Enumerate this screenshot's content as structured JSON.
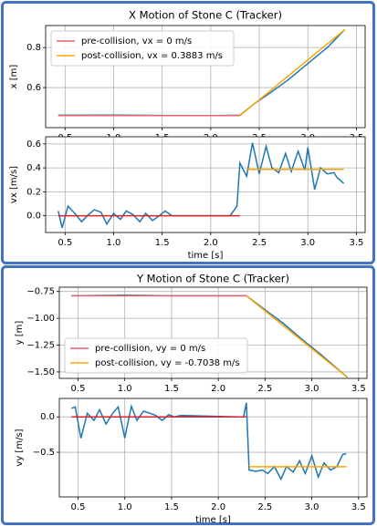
{
  "chart_data": [
    {
      "type": "line",
      "title": "X Motion of Stone C (Tracker)",
      "y_label": "x [m]",
      "xlim": [
        0.3,
        3.59
      ],
      "xticks": [
        0.5,
        {
          "value": 1,
          "label": "1.0"
        },
        1.5,
        {
          "value": 2,
          "label": "2.0"
        },
        2.5,
        {
          "value": 3,
          "label": "3.0"
        },
        3.5
      ],
      "ylim": [
        0.4,
        0.91
      ],
      "yticks": [
        0.6,
        0.8
      ],
      "grid": true,
      "legend": "upper left",
      "series": [
        {
          "color": "#1f77b4",
          "x": [
            0.43,
            1.0,
            1.5,
            2.0,
            2.3,
            2.45,
            2.6,
            2.8,
            3.0,
            3.2,
            3.38
          ],
          "values": [
            0.462,
            0.463,
            0.461,
            0.46,
            0.462,
            0.52,
            0.57,
            0.64,
            0.72,
            0.8,
            0.89
          ]
        },
        {
          "name": "pre-collision, vx = 0 m/s",
          "color": "#e8646a",
          "x": [
            0.43,
            2.3
          ],
          "values": [
            0.46,
            0.46
          ]
        },
        {
          "name": "post-collision, vx = 0.3883 m/s",
          "color": "#ffa500",
          "x": [
            2.3,
            3.38
          ],
          "values": [
            0.46,
            0.89
          ]
        }
      ]
    },
    {
      "type": "line",
      "x_label": "time [s]",
      "y_label": "vx [m/s]",
      "xlim": [
        0.3,
        3.59
      ],
      "xticks": [
        0.5,
        {
          "value": 1,
          "label": "1.0"
        },
        1.5,
        {
          "value": 2,
          "label": "2.0"
        },
        2.5,
        {
          "value": 3,
          "label": "3.0"
        },
        3.5
      ],
      "ylim": [
        -0.14,
        0.66
      ],
      "yticks": [
        {
          "value": 0,
          "label": "0.0"
        },
        0.2,
        0.4,
        0.6
      ],
      "grid": true,
      "series": [
        {
          "color": "#1f77b4",
          "x": [
            0.43,
            0.47,
            0.53,
            0.6,
            0.67,
            0.73,
            0.8,
            0.87,
            0.93,
            1.0,
            1.07,
            1.13,
            1.2,
            1.27,
            1.33,
            1.4,
            1.47,
            1.53,
            1.6,
            2.2,
            2.27,
            2.3,
            2.37,
            2.43,
            2.5,
            2.57,
            2.63,
            2.7,
            2.77,
            2.83,
            2.9,
            2.97,
            3.0,
            3.07,
            3.13,
            3.2,
            3.27,
            3.3,
            3.37
          ],
          "values": [
            0.04,
            -0.1,
            0.08,
            0.02,
            -0.05,
            0.0,
            0.05,
            0.03,
            -0.07,
            0.02,
            -0.03,
            0.04,
            0.01,
            -0.05,
            0.02,
            -0.04,
            0.0,
            0.04,
            0.0,
            0.0,
            0.08,
            0.44,
            0.33,
            0.61,
            0.35,
            0.58,
            0.4,
            0.36,
            0.52,
            0.37,
            0.54,
            0.38,
            0.57,
            0.22,
            0.4,
            0.35,
            0.36,
            0.32,
            0.27
          ]
        },
        {
          "color": "#d62728",
          "x": [
            0.43,
            2.3
          ],
          "values": [
            0,
            0
          ]
        },
        {
          "color": "#ffa500",
          "x": [
            2.37,
            3.37
          ],
          "values": [
            0.3883,
            0.3883
          ]
        }
      ]
    },
    {
      "type": "line",
      "title": "Y Motion of Stone C (Tracker)",
      "y_label": "y [m]",
      "xlim": [
        0.3,
        3.59
      ],
      "xticks": [
        0.5,
        {
          "value": 1,
          "label": "1.0"
        },
        1.5,
        {
          "value": 2,
          "label": "2.0"
        },
        2.5,
        {
          "value": 3,
          "label": "3.0"
        },
        3.5
      ],
      "ylim": [
        -1.56,
        -0.71
      ],
      "yticks": [
        {
          "value": -0.75,
          "label": "−0.75"
        },
        {
          "value": -1,
          "label": "−1.00"
        },
        {
          "value": -1.25,
          "label": "−1.25"
        },
        {
          "value": -1.5,
          "label": "−1.50"
        }
      ],
      "grid": true,
      "legend": "lower left",
      "series": [
        {
          "color": "#1f77b4",
          "x": [
            0.43,
            1.0,
            1.5,
            2.0,
            2.3,
            2.5,
            2.7,
            2.9,
            3.1,
            3.3,
            3.38
          ],
          "values": [
            -0.79,
            -0.785,
            -0.79,
            -0.79,
            -0.79,
            -0.92,
            -1.05,
            -1.2,
            -1.34,
            -1.49,
            -1.55
          ]
        },
        {
          "name": "pre-collision, vy = 0 m/s",
          "color": "#e8646a",
          "x": [
            0.43,
            2.3
          ],
          "values": [
            -0.79,
            -0.79
          ]
        },
        {
          "name": "post-collision, vy = -0.7038 m/s",
          "color": "#ffa500",
          "x": [
            2.3,
            3.38
          ],
          "values": [
            -0.79,
            -1.55
          ]
        }
      ]
    },
    {
      "type": "line",
      "x_label": "time [s]",
      "y_label": "vy [m/s]",
      "xlim": [
        0.3,
        3.59
      ],
      "xticks": [
        0.5,
        {
          "value": 1,
          "label": "1.0"
        },
        1.5,
        {
          "value": 2,
          "label": "2.0"
        },
        2.5,
        {
          "value": 3,
          "label": "3.0"
        },
        3.5
      ],
      "ylim": [
        -1.13,
        0.26
      ],
      "yticks": [
        {
          "value": 0,
          "label": "0.0"
        },
        {
          "value": -0.5,
          "label": "−0.5"
        }
      ],
      "grid": true,
      "series": [
        {
          "color": "#1f77b4",
          "x": [
            0.43,
            0.47,
            0.53,
            0.6,
            0.67,
            0.73,
            0.8,
            0.87,
            0.93,
            1.0,
            1.07,
            1.13,
            1.2,
            1.27,
            1.33,
            1.4,
            1.47,
            1.53,
            1.6,
            2.2,
            2.27,
            2.3,
            2.33,
            2.4,
            2.47,
            2.53,
            2.6,
            2.67,
            2.73,
            2.8,
            2.87,
            2.93,
            3.0,
            3.07,
            3.13,
            3.2,
            3.27,
            3.33,
            3.37
          ],
          "values": [
            0.12,
            0.14,
            -0.3,
            0.05,
            -0.05,
            0.1,
            -0.1,
            0.05,
            0.14,
            -0.3,
            0.15,
            -0.05,
            0.08,
            0.05,
            0.02,
            -0.05,
            0.03,
            0.0,
            0.02,
            0.0,
            0.0,
            0.2,
            -0.75,
            -0.77,
            -0.75,
            -0.8,
            -0.7,
            -0.88,
            -0.7,
            -0.78,
            -0.62,
            -0.8,
            -0.55,
            -0.85,
            -0.65,
            -0.75,
            -0.7,
            -0.53,
            -0.52
          ]
        },
        {
          "color": "#d62728",
          "x": [
            0.43,
            2.3
          ],
          "values": [
            0,
            0
          ]
        },
        {
          "color": "#ffa500",
          "x": [
            2.33,
            3.37
          ],
          "values": [
            -0.7038,
            -0.7038
          ]
        }
      ]
    }
  ]
}
